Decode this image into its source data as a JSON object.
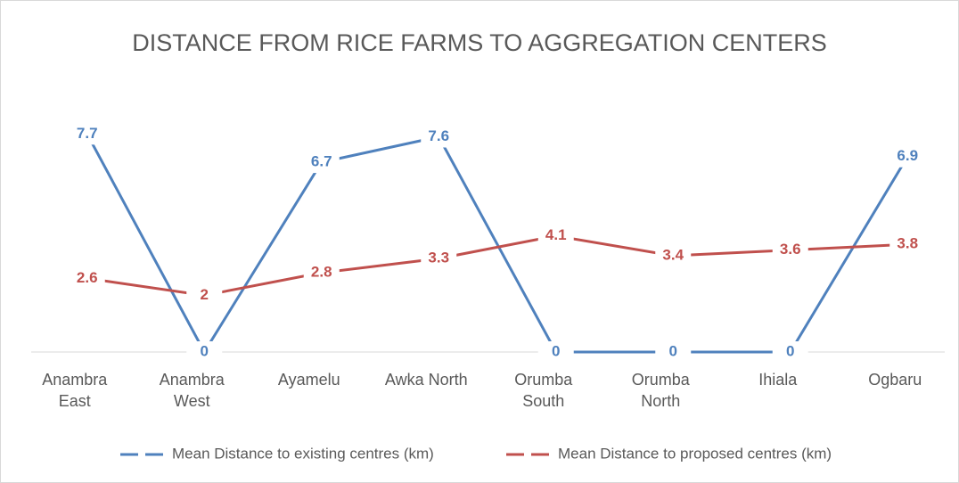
{
  "chart_data": {
    "type": "line",
    "title": "DISTANCE FROM RICE FARMS TO AGGREGATION CENTERS",
    "categories": [
      "Anambra East",
      "Anambra West",
      "Ayamelu",
      "Awka North",
      "Orumba South",
      "Orumba North",
      "Ihiala",
      "Ogbaru"
    ],
    "series": [
      {
        "name": "Mean Distance to existing centres (km)",
        "color": "#4f81bd",
        "values": [
          7.7,
          0,
          6.7,
          7.6,
          0,
          0,
          0,
          6.9
        ]
      },
      {
        "name": "Mean Distance to proposed centres (km)",
        "color": "#c0504d",
        "values": [
          2.6,
          2,
          2.8,
          3.3,
          4.1,
          3.4,
          3.6,
          3.8
        ]
      }
    ],
    "ylim": [
      0,
      9
    ],
    "legend": "bottom"
  }
}
